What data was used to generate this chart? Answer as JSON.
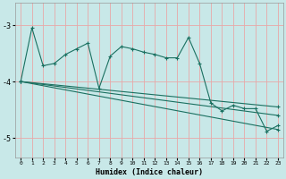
{
  "xlabel": "Humidex (Indice chaleur)",
  "bg_color": "#c8e8e8",
  "grid_color": "#e8a8a8",
  "line_color": "#1a7060",
  "xlim": [
    -0.5,
    23.5
  ],
  "ylim": [
    -5.35,
    -2.6
  ],
  "yticks": [
    -5,
    -4,
    -3
  ],
  "xticks": [
    0,
    1,
    2,
    3,
    4,
    5,
    6,
    7,
    8,
    9,
    10,
    11,
    12,
    13,
    14,
    15,
    16,
    17,
    18,
    19,
    20,
    21,
    22,
    23
  ],
  "line1_x": [
    0,
    1,
    2,
    3,
    4,
    5,
    6,
    7,
    8,
    9,
    10,
    11,
    12,
    13,
    14,
    15,
    16,
    17,
    18,
    19,
    20,
    21,
    22,
    23
  ],
  "line1_y": [
    -4.0,
    -3.05,
    -3.72,
    -3.68,
    -3.52,
    -3.42,
    -3.32,
    -4.12,
    -3.55,
    -3.38,
    -3.42,
    -3.48,
    -3.52,
    -3.58,
    -3.58,
    -3.22,
    -3.68,
    -4.38,
    -4.52,
    -4.42,
    -4.48,
    -4.48,
    -4.88,
    -4.78
  ],
  "line2_x": [
    0,
    23
  ],
  "line2_y": [
    -4.0,
    -4.85
  ],
  "line3_x": [
    0,
    23
  ],
  "line3_y": [
    -4.0,
    -4.6
  ],
  "line4_x": [
    0,
    23
  ],
  "line4_y": [
    -4.0,
    -4.45
  ],
  "marker": "+"
}
